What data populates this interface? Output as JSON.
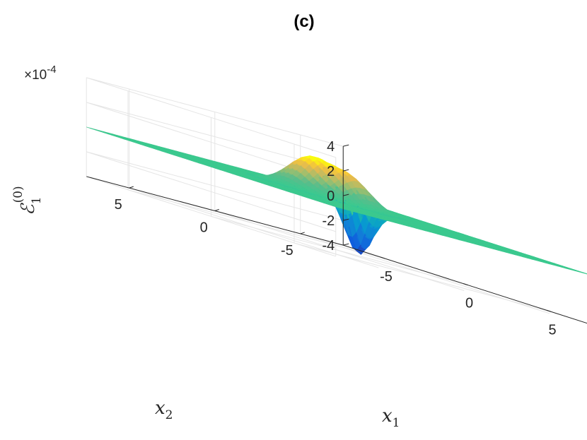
{
  "chart_data": {
    "type": "surface",
    "title": "(c)",
    "xlabel": {
      "main": "x",
      "sub": "1"
    },
    "ylabel": {
      "main": "x",
      "sub": "2"
    },
    "zlabel": {
      "main": "ℰ",
      "sub": "1",
      "sup": "(0)"
    },
    "z_multiplier": {
      "prefix": "×10",
      "exponent": "-4"
    },
    "xlim": [
      -7.5,
      7.5
    ],
    "ylim": [
      -7.5,
      7.5
    ],
    "zlim": [
      -4,
      4
    ],
    "x_ticks": [
      {
        "v": -5,
        "label": "-5"
      },
      {
        "v": 0,
        "label": "0"
      },
      {
        "v": 5,
        "label": "5"
      }
    ],
    "y_ticks": [
      {
        "v": -5,
        "label": "-5"
      },
      {
        "v": 0,
        "label": "0"
      },
      {
        "v": 5,
        "label": "5"
      }
    ],
    "z_ticks": [
      {
        "v": 4,
        "label": "4"
      },
      {
        "v": 2,
        "label": "2"
      },
      {
        "v": 0,
        "label": "0"
      },
      {
        "v": -2,
        "label": "-2"
      },
      {
        "v": -4,
        "label": "-4"
      }
    ],
    "grid": true,
    "colormap": "parula",
    "baseline_value": 0,
    "features": [
      {
        "kind": "peak",
        "x1": -0.8,
        "x2": 1.0,
        "value": 2.7
      },
      {
        "kind": "peak",
        "x1": 0.8,
        "x2": 0.2,
        "value": 2.2
      },
      {
        "kind": "trough",
        "x1": -0.3,
        "x2": -1.4,
        "value": -4.2
      }
    ]
  },
  "colors": {
    "grid": "#e5e5e5",
    "axis": "#262626",
    "flat_surface": "#3cc98f"
  }
}
